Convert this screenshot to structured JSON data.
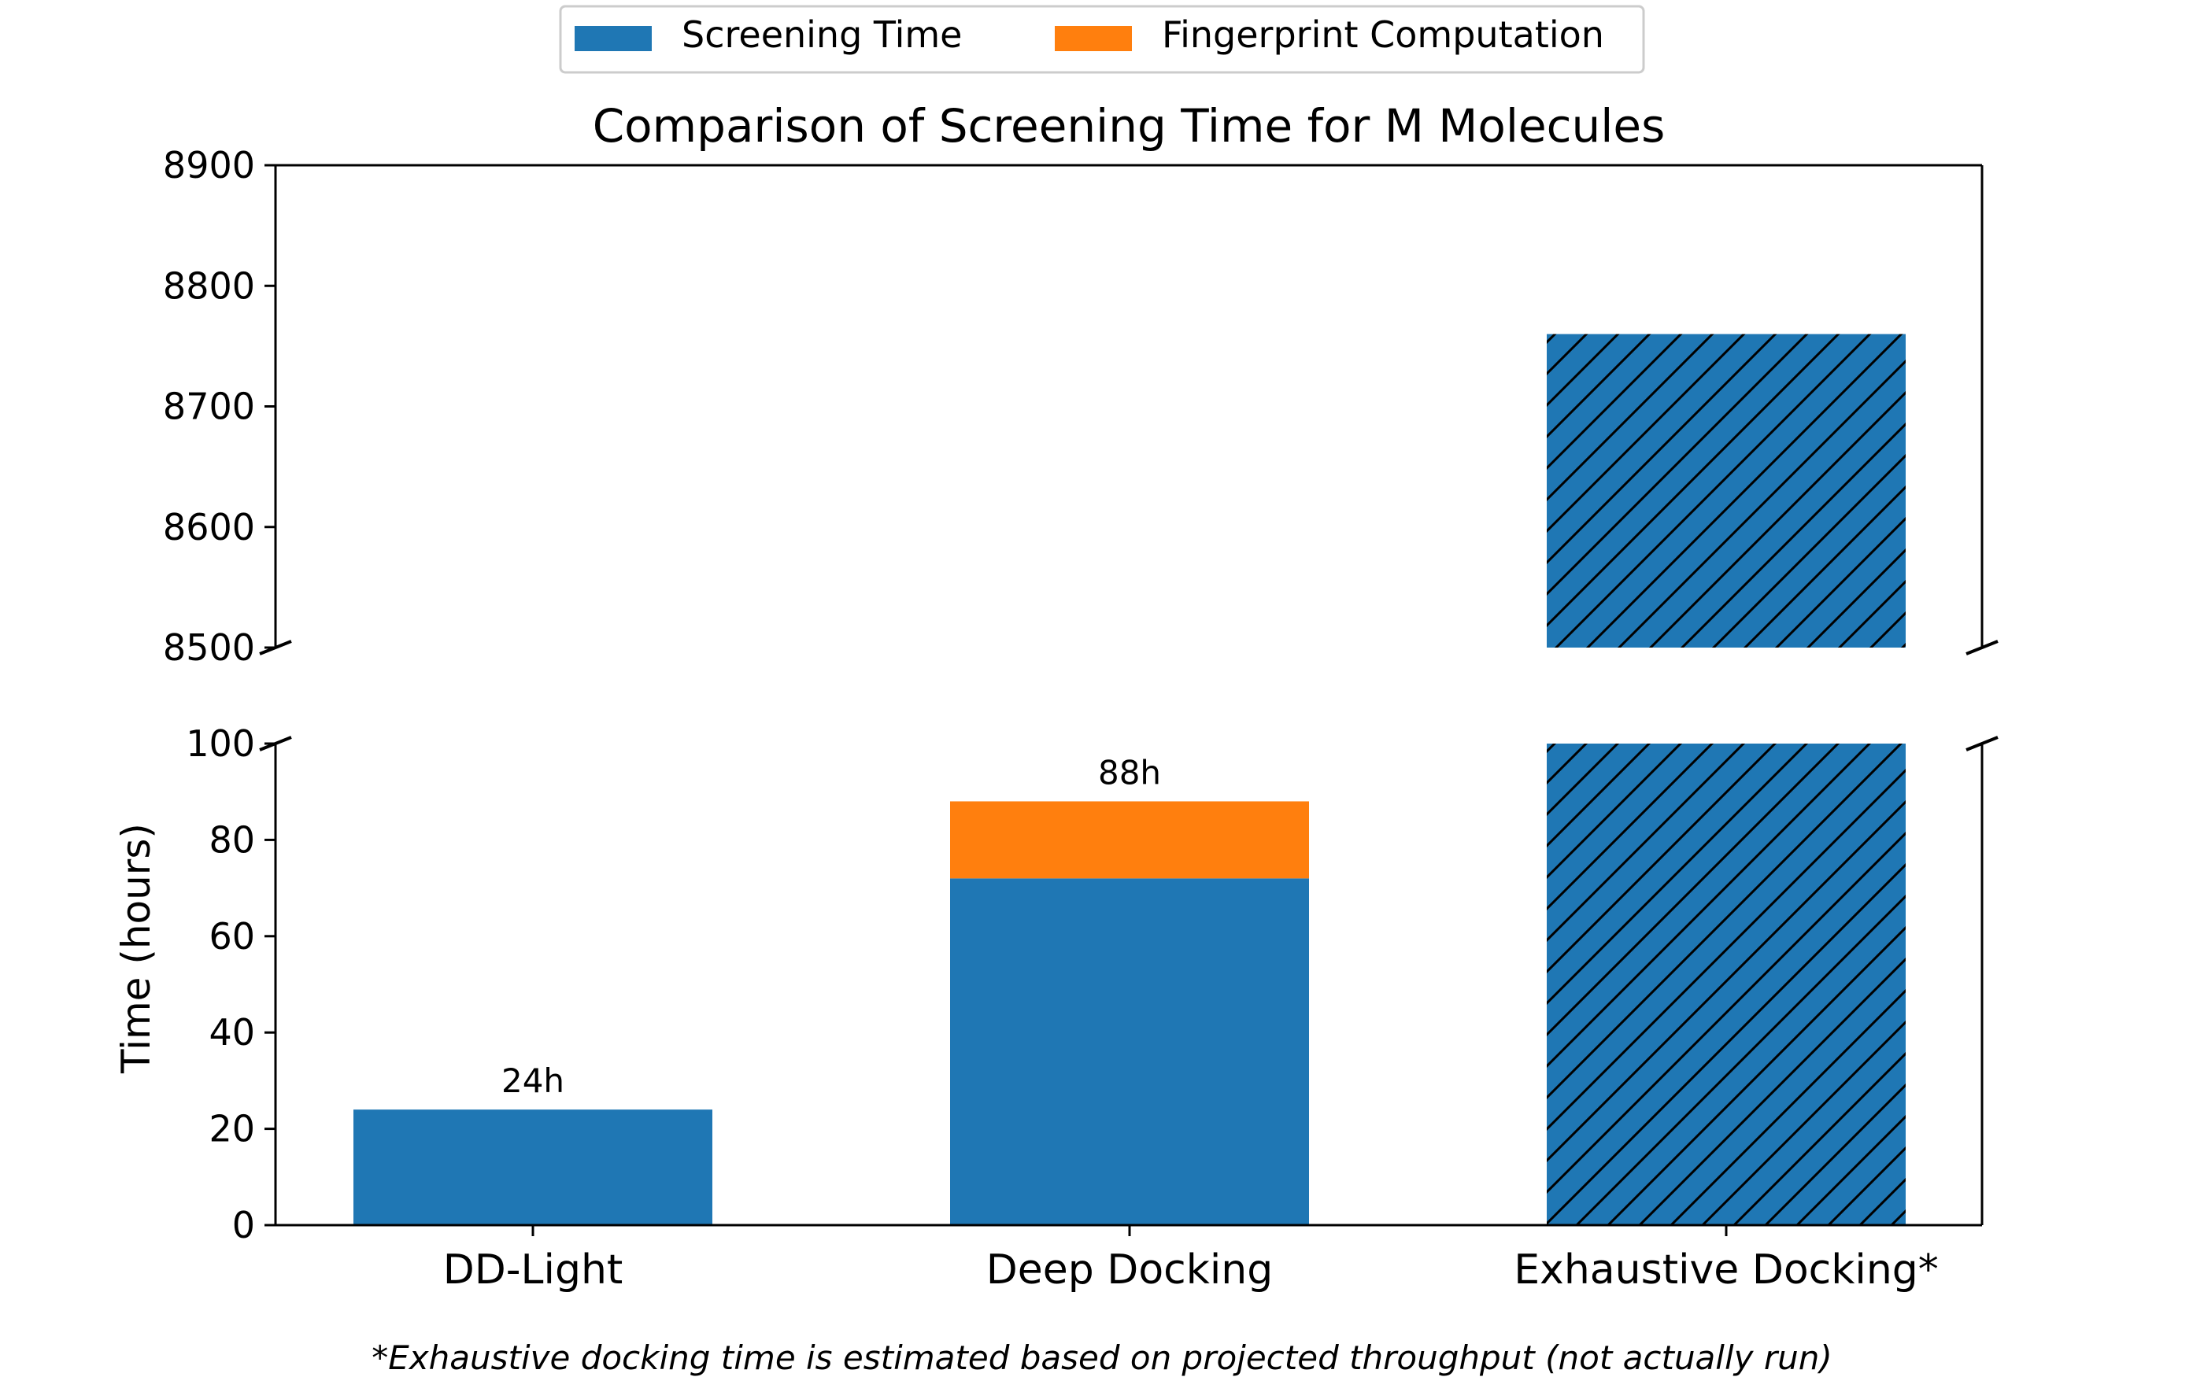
{
  "chart_data": {
    "type": "bar",
    "title": "Comparison of Screening Time for M Molecules",
    "ylabel": "Time (hours)",
    "xlabel": "",
    "categories": [
      "DD-Light",
      "Deep Docking",
      "Exhaustive Docking*"
    ],
    "series": [
      {
        "name": "Screening Time",
        "color": "#1f77b4",
        "values": [
          24,
          72,
          8760
        ]
      },
      {
        "name": "Fingerprint Computation",
        "color": "#ff7f0e",
        "values": [
          0,
          16,
          0
        ]
      }
    ],
    "hatched_category": "Exhaustive Docking*",
    "broken_axis": {
      "upper": {
        "ylim": [
          8500,
          8900
        ],
        "ticks": [
          8500,
          8600,
          8700,
          8800,
          8900
        ]
      },
      "lower": {
        "ylim": [
          0,
          100
        ],
        "ticks": [
          0,
          20,
          40,
          60,
          80,
          100
        ]
      }
    },
    "data_labels": [
      {
        "category": "DD-Light",
        "text": "24h",
        "value": 24
      },
      {
        "category": "Deep Docking",
        "text": "88h",
        "value": 88
      }
    ],
    "legend_position": "top-center",
    "grid": false,
    "footnote": "*Exhaustive docking time is estimated based on projected throughput (not actually run)"
  }
}
